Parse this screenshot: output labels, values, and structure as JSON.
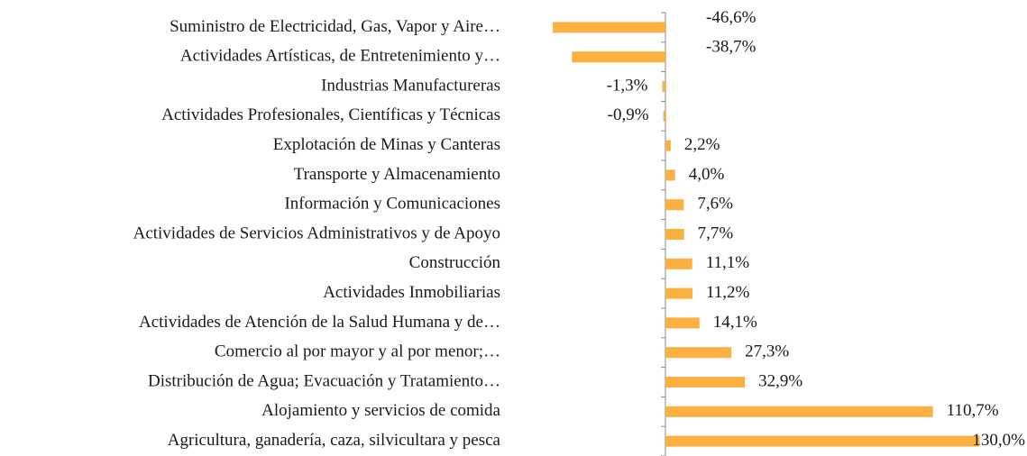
{
  "chart_data": {
    "type": "bar",
    "orientation": "horizontal",
    "categories": [
      "Suministro de Electricidad, Gas, Vapor y Aire…",
      "Actividades Artísticas, de Entretenimiento y…",
      "Industrias Manufactureras",
      "Actividades Profesionales, Científicas y Técnicas",
      "Explotación de Minas y Canteras",
      "Transporte y Almacenamiento",
      "Información y Comunicaciones",
      "Actividades de Servicios Administrativos y de Apoyo",
      "Construcción",
      "Actividades Inmobiliarias",
      "Actividades de Atención de la Salud Humana y de…",
      "Comercio al por mayor y al por menor;…",
      "Distribución de Agua; Evacuación y Tratamiento…",
      "Alojamiento y servicios de comida",
      "Agricultura, ganadería, caza, silvicultara y pesca"
    ],
    "values": [
      -46.6,
      -38.7,
      -1.3,
      -0.9,
      2.2,
      4.0,
      7.6,
      7.7,
      11.1,
      11.2,
      14.1,
      27.3,
      32.9,
      110.7,
      130.0
    ],
    "value_labels": [
      "-46,6%",
      "-38,7%",
      "-1,3%",
      "-0,9%",
      "2,2%",
      "4,0%",
      "7,6%",
      "7,7%",
      "11,1%",
      "11,2%",
      "14,1%",
      "27,3%",
      "32,9%",
      "110,7%",
      "130,0%"
    ],
    "color": "#fbb040",
    "xlim": [
      -50,
      150
    ]
  }
}
